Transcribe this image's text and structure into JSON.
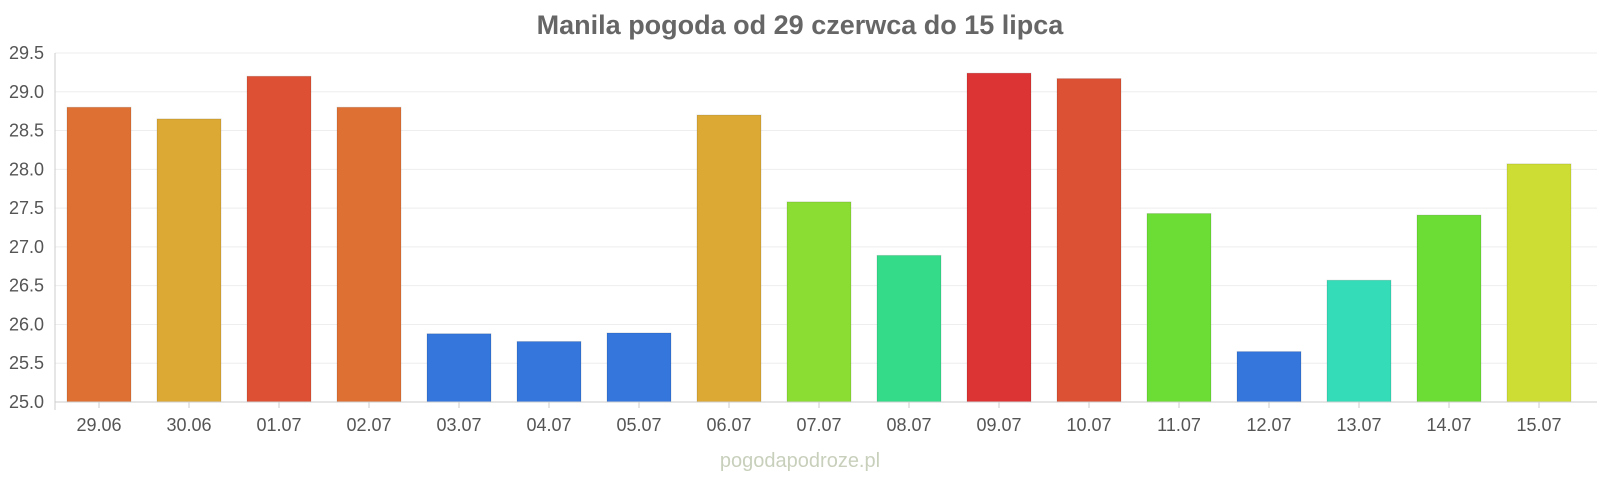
{
  "chart_data": {
    "type": "bar",
    "title": "Manila pogoda od 29 czerwca do 15 lipca",
    "xlabel": "",
    "ylabel": "",
    "ylim": [
      25.0,
      29.5
    ],
    "yticks": [
      "25.0",
      "25.5",
      "26.0",
      "26.5",
      "27.0",
      "27.5",
      "28.0",
      "28.5",
      "29.0",
      "29.5"
    ],
    "grid": true,
    "legend": "none",
    "categories": [
      "29.06",
      "30.06",
      "01.07",
      "02.07",
      "03.07",
      "04.07",
      "05.07",
      "06.07",
      "07.07",
      "08.07",
      "09.07",
      "10.07",
      "11.07",
      "12.07",
      "13.07",
      "14.07",
      "15.07"
    ],
    "values": [
      28.8,
      28.65,
      29.2,
      28.8,
      25.88,
      25.78,
      25.89,
      28.7,
      27.58,
      26.89,
      29.24,
      29.17,
      27.43,
      25.65,
      26.57,
      27.41,
      28.07
    ],
    "colors": [
      "#df7034",
      "#dca934",
      "#dd5033",
      "#df7034",
      "#3476dc",
      "#3476dc",
      "#3476dc",
      "#dca934",
      "#8bdd34",
      "#34dc8a",
      "#dc3434",
      "#dc5033",
      "#6bdd34",
      "#3476dc",
      "#34dcb7",
      "#6bdd34",
      "#cedd34"
    ]
  },
  "watermark": "pogodapodroze.pl"
}
